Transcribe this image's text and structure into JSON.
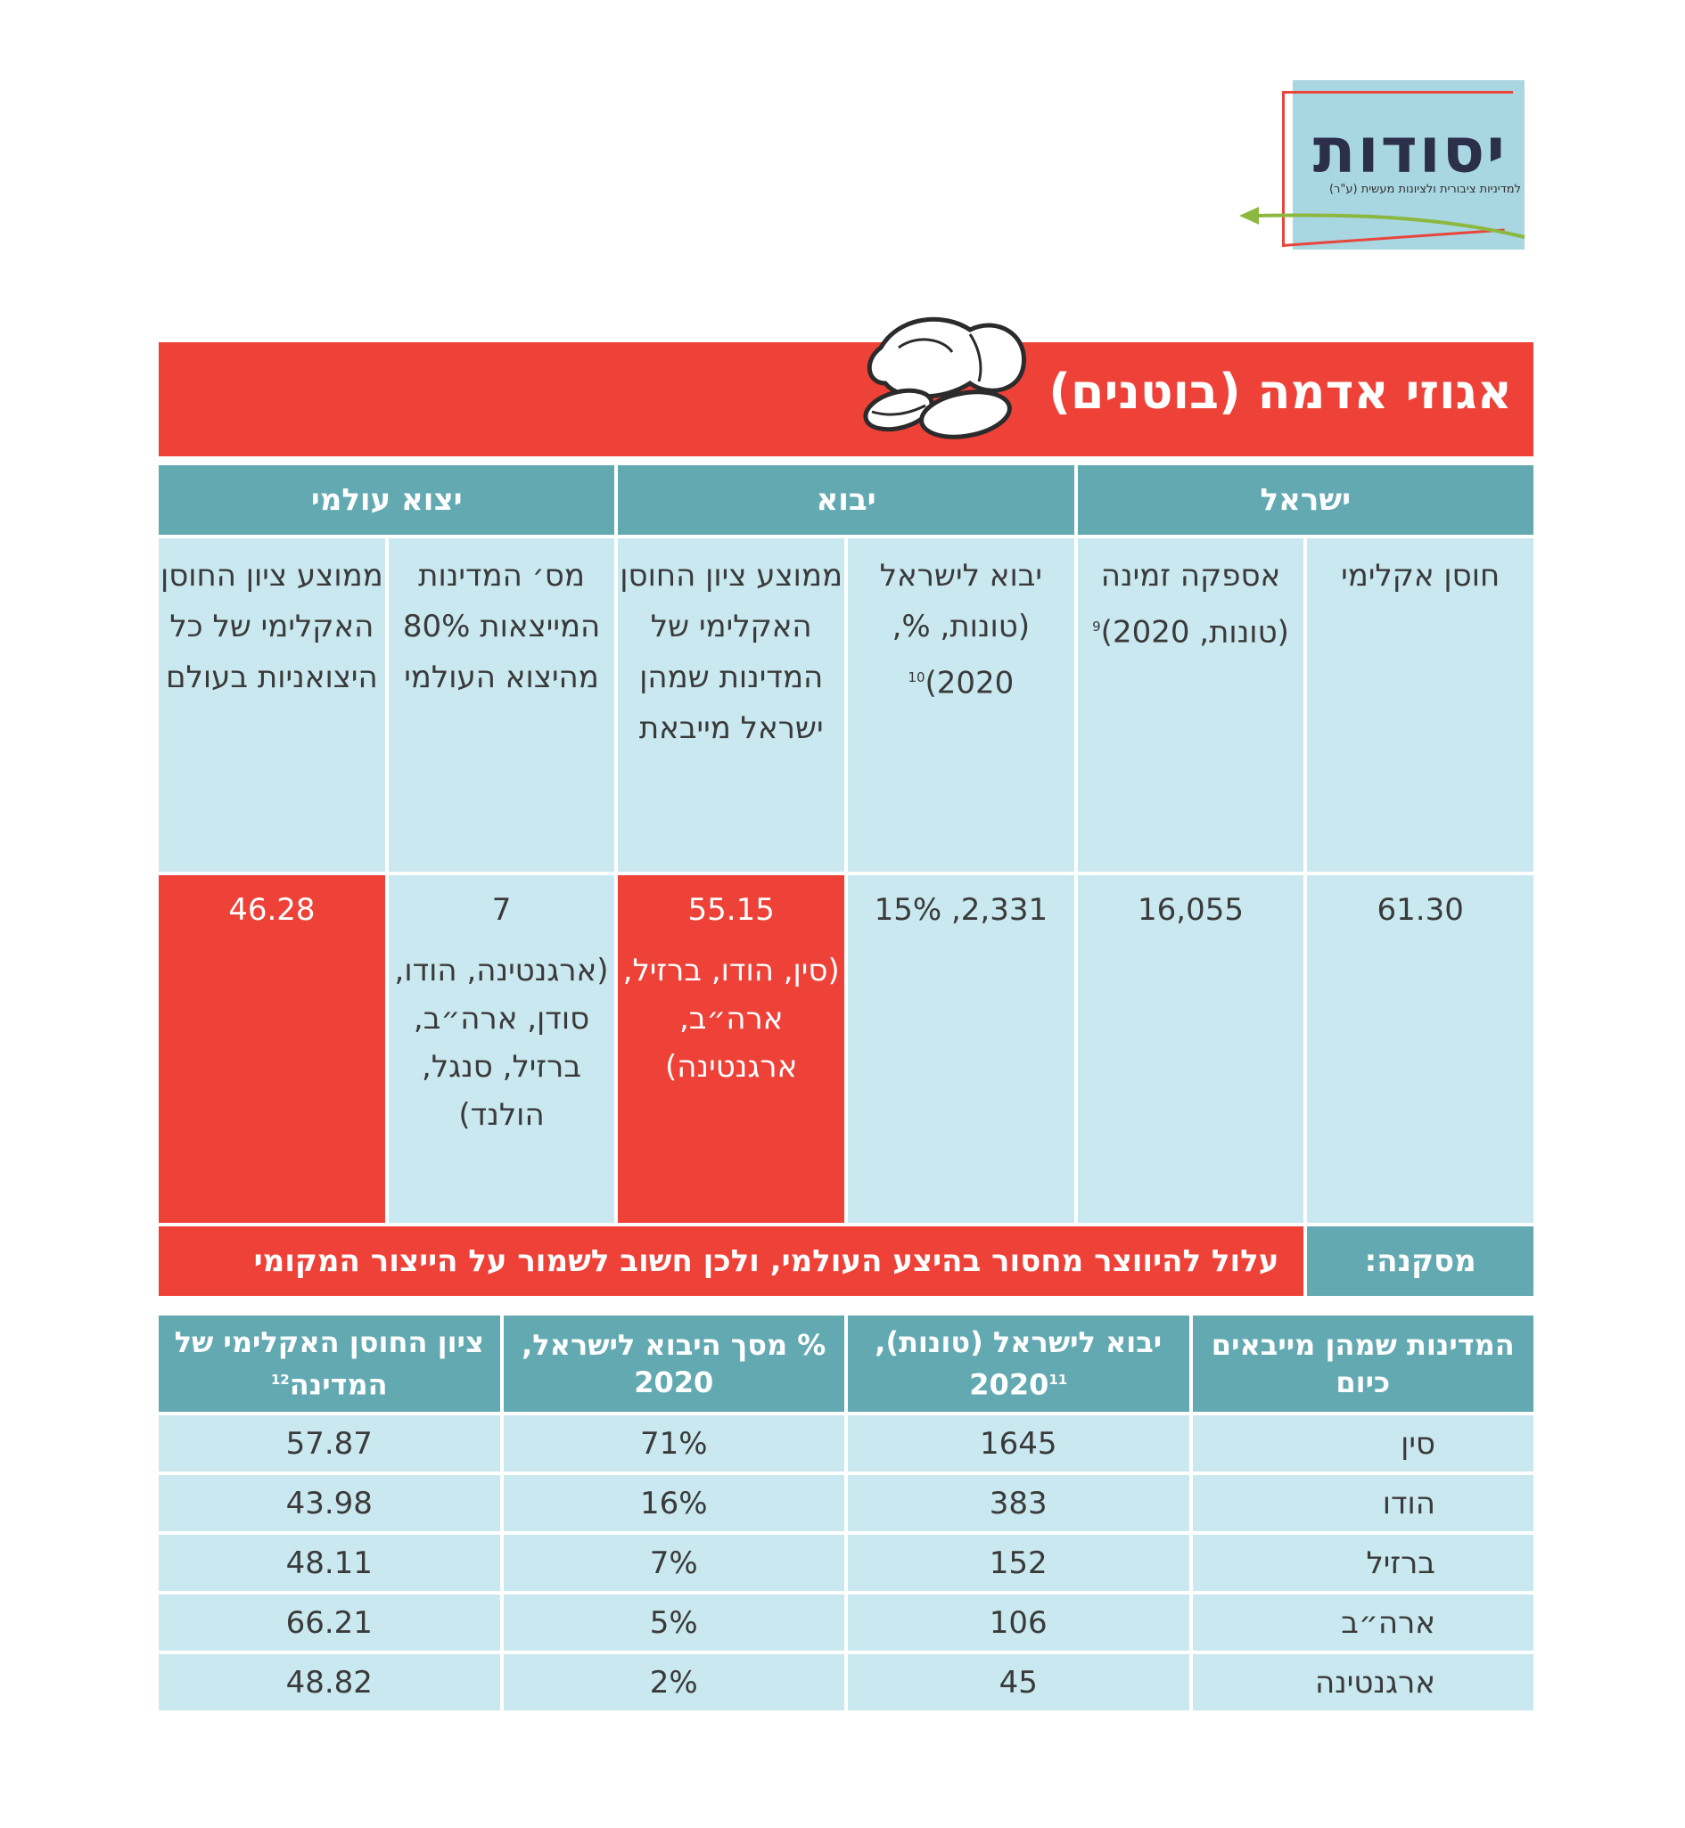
{
  "logo": {
    "title": "יסודות",
    "subtitle": "למדיניות ציבורית ולציונות מעשית (ע\"ר)"
  },
  "banner": {
    "title": "אגוזי אדמה (בוטנים)",
    "icon": "peanut-icon"
  },
  "colors": {
    "red": "#ee4138",
    "teal": "#62a9b2",
    "light_blue": "#c9e8ef"
  },
  "table1": {
    "groups": [
      "ישראל",
      "יבוא",
      "יצוא עולמי"
    ],
    "columns": [
      {
        "label": "חוסן אקלימי",
        "sup": ""
      },
      {
        "label": "אספקה זמינה (טונות, 2020)",
        "sup": "9"
      },
      {
        "label": "יבוא לישראל (טונות, %, 2020)",
        "sup": "10"
      },
      {
        "label": "ממוצע ציון החוסן האקלימי של המדינות שמהן ישראל מייבאת",
        "sup": ""
      },
      {
        "label": "מס׳ המדינות המייצאות 80% מהיצוא העולמי",
        "sup": ""
      },
      {
        "label": "ממוצע ציון החוסן האקלימי של כל היצואניות בעולם",
        "sup": ""
      }
    ],
    "values": [
      {
        "main": "61.30",
        "detail": ""
      },
      {
        "main": "16,055",
        "detail": ""
      },
      {
        "main": "2,331, 15%",
        "detail": ""
      },
      {
        "main": "55.15",
        "detail": "(סין, הודו, ברזיל, ארה״ב, ארגנטינה)"
      },
      {
        "main": "7",
        "detail": "(ארגנטינה, הודו, סודן, ארה״ב, ברזיל, סנגל, הולנד)"
      },
      {
        "main": "46.28",
        "detail": ""
      }
    ],
    "conclusion_label": "מסקנה:",
    "conclusion_text": "עלול להיווצר מחסור בהיצע העולמי, ולכן חשוב לשמור על הייצור המקומי"
  },
  "table2": {
    "headers": [
      {
        "label": "המדינות שמהן מייבאים כיום",
        "sup": ""
      },
      {
        "label": "יבוא לישראל (טונות), 2020",
        "sup": "11"
      },
      {
        "label": "% מסך היבוא לישראל, 2020",
        "sup": ""
      },
      {
        "label": "ציון החוסן האקלימי של המדינה",
        "sup": "12"
      }
    ],
    "rows": [
      {
        "country": "סין",
        "tons": "1645",
        "share": "71%",
        "score": "57.87"
      },
      {
        "country": "הודו",
        "tons": "383",
        "share": "16%",
        "score": "43.98"
      },
      {
        "country": "ברזיל",
        "tons": "152",
        "share": "7%",
        "score": "48.11"
      },
      {
        "country": "ארה״ב",
        "tons": "106",
        "share": "5%",
        "score": "66.21"
      },
      {
        "country": "ארגנטינה",
        "tons": "45",
        "share": "2%",
        "score": "48.82"
      }
    ]
  }
}
